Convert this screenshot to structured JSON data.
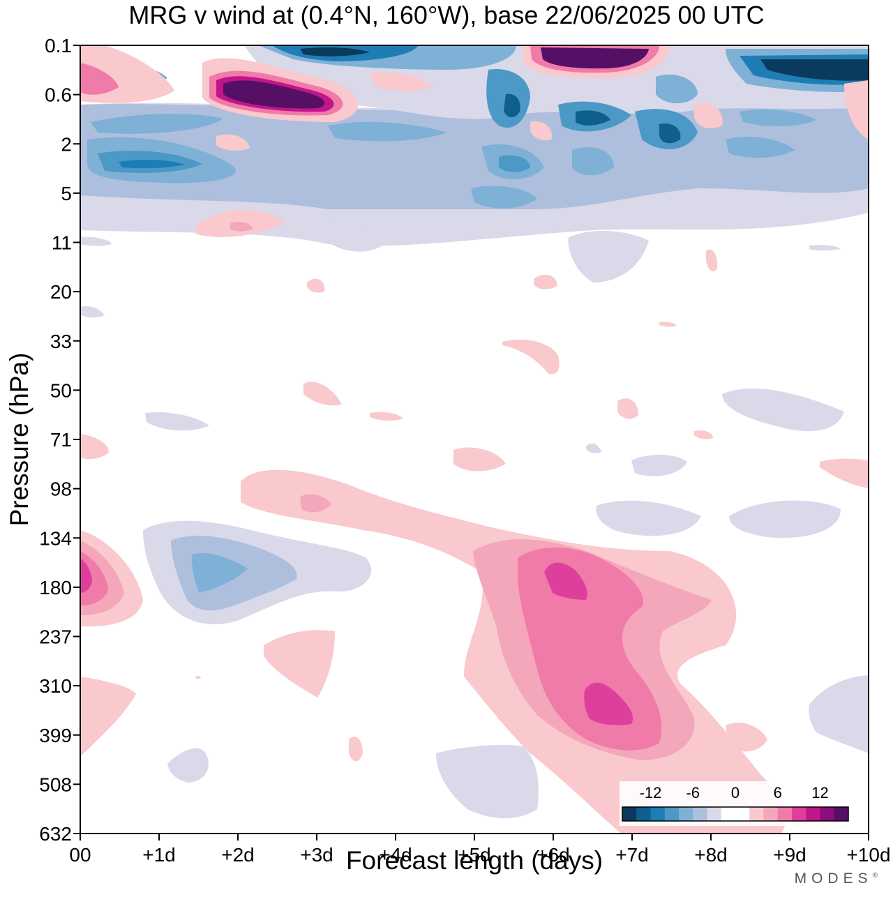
{
  "chart_data": {
    "type": "heatmap",
    "title": "MRG v wind at (0.4°N, 160°W),  base 22/06/2025  00 UTC",
    "xlabel": "Forecast length (days)",
    "ylabel": "Pressure (hPa)",
    "x_ticks": [
      "00",
      "+1d",
      "+2d",
      "+3d",
      "+4d",
      "+5d",
      "+6d",
      "+7d",
      "+8d",
      "+9d",
      "+10d"
    ],
    "y_ticks": [
      "0.1",
      "0.6",
      "2",
      "5",
      "11",
      "20",
      "33",
      "50",
      "71",
      "98",
      "134",
      "180",
      "237",
      "310",
      "399",
      "508",
      "632"
    ],
    "xlim_days": [
      0,
      10
    ],
    "colorbar": {
      "tick_labels": [
        "-12",
        "-6",
        "0",
        "6",
        "12"
      ],
      "tick_values": [
        -12,
        -6,
        0,
        6,
        12
      ],
      "levels": [
        -14,
        -12,
        -10,
        -8,
        -6,
        -4,
        -2,
        0,
        2,
        4,
        6,
        8,
        10,
        12,
        14
      ],
      "colors": [
        "#0a3a5e",
        "#0e5e8e",
        "#1f7db6",
        "#4c98c6",
        "#7fb1d6",
        "#aebfdd",
        "#d9d9ea",
        "#ffffff",
        "#ffffff",
        "#f9c9cd",
        "#f4a6ba",
        "#f07aa8",
        "#de3f9d",
        "#c0168a",
        "#8a0d7f",
        "#551066"
      ]
    },
    "features": [
      {
        "label": "near-tropopause positive maximum",
        "x_day": 6.3,
        "pressure_hpa": 180,
        "v": 12
      },
      {
        "label": "mid-troposphere positive maximum",
        "x_day": 6.8,
        "pressure_hpa": 350,
        "v": 11
      },
      {
        "label": "initial positive maximum",
        "x_day": 0.1,
        "pressure_hpa": 175,
        "v": 10
      },
      {
        "label": "negative minimum",
        "x_day": 1.8,
        "pressure_hpa": 175,
        "v": -7
      },
      {
        "label": "stratospheric positive maximum",
        "x_day": 2.4,
        "pressure_hpa": 0.6,
        "v": 16
      },
      {
        "label": "stratospheric positive maximum",
        "x_day": 6.5,
        "pressure_hpa": 0.2,
        "v": 16
      },
      {
        "label": "stratospheric negative minimum",
        "x_day": 9.5,
        "pressure_hpa": 0.3,
        "v": -16
      },
      {
        "label": "stratospheric negative minimum",
        "x_day": 3.3,
        "pressure_hpa": 0.15,
        "v": -15
      }
    ]
  },
  "brand": {
    "name": "MODES",
    "mark": "®"
  }
}
